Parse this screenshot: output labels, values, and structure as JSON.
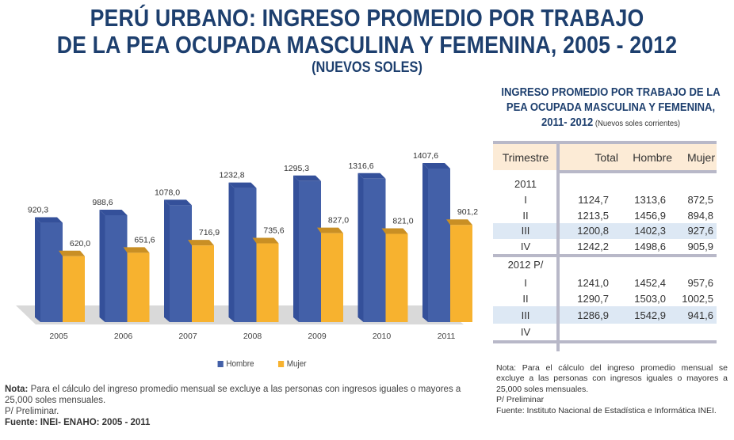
{
  "header": {
    "title_line1": "PERÚ URBANO: INGRESO PROMEDIO POR TRABAJO",
    "title_line2": "DE LA PEA OCUPADA MASCULINA Y FEMENINA, 2005 - 2012",
    "title_line3": "(NUEVOS SOLES)"
  },
  "colors": {
    "title": "#1d3f6e",
    "hombre": "#4360a8",
    "hombre_dark": "#34509a",
    "mujer": "#f7b22f",
    "mujer_dark": "#c98f24",
    "floor": "#d9d9d9",
    "table_header": "#fcebd6",
    "table_highlight": "#dde8f4"
  },
  "chart_data": {
    "type": "bar",
    "title": "",
    "xlabel": "",
    "ylabel": "",
    "ylim": [
      0,
      1500
    ],
    "grid": false,
    "legend_position": "bottom-center",
    "categories": [
      "2005",
      "2006",
      "2007",
      "2008",
      "2009",
      "2010",
      "2011"
    ],
    "series": [
      {
        "name": "Hombre",
        "values": [
          920.3,
          988.6,
          1078.0,
          1232.8,
          1295.3,
          1316.6,
          1407.6
        ],
        "labels": [
          "920,3",
          "988,6",
          "1078,0",
          "1232,8",
          "1295,3",
          "1316,6",
          "1407,6"
        ]
      },
      {
        "name": "Mujer",
        "values": [
          620.0,
          651.6,
          716.9,
          735.6,
          827.0,
          821.0,
          901.2
        ],
        "labels": [
          "620,0",
          "651,6",
          "716,9",
          "735,6",
          "827,0",
          "821,0",
          "901,2"
        ]
      }
    ]
  },
  "legend": {
    "hombre": "Hombre",
    "mujer": "Mujer"
  },
  "left_notes": {
    "nota_label": "Nota:",
    "nota_text": " Para el cálculo del ingreso promedio mensual se excluye a las personas con ingresos iguales o mayores a 25,000 soles mensuales.",
    "preliminar": "P/ Preliminar.",
    "fuente": "Fuente: INEI- ENAHO: 2005 - 2011"
  },
  "table": {
    "title_line1": "INGRESO PROMEDIO POR TRABAJO DE LA",
    "title_line2": "PEA OCUPADA MASCULINA Y FEMENINA,",
    "title_line3": "2011- 2012",
    "title_sub": " (Nuevos soles corrientes)",
    "headers": [
      "Trimestre",
      "Total",
      "Hombre",
      "Mujer"
    ],
    "groups": [
      {
        "year": "2011",
        "rows": [
          {
            "q": "I",
            "total": "1124,7",
            "hombre": "1313,6",
            "mujer": "872,5"
          },
          {
            "q": "II",
            "total": "1213,5",
            "hombre": "1456,9",
            "mujer": "894,8"
          },
          {
            "q": "III",
            "total": "1200,8",
            "hombre": "1402,3",
            "mujer": "927,6"
          },
          {
            "q": "IV",
            "total": "1242,2",
            "hombre": "1498,6",
            "mujer": "905,9"
          }
        ]
      },
      {
        "year": "2012 P/",
        "rows": [
          {
            "q": "I",
            "total": "1241,0",
            "hombre": "1452,4",
            "mujer": "957,6"
          },
          {
            "q": "II",
            "total": "1290,7",
            "hombre": "1503,0",
            "mujer": "1002,5"
          },
          {
            "q": "III",
            "total": "1286,9",
            "hombre": "1542,9",
            "mujer": "941,6"
          },
          {
            "q": "IV",
            "total": "",
            "hombre": "",
            "mujer": ""
          }
        ]
      }
    ]
  },
  "right_notes": {
    "nota": "Nota: Para el cálculo del ingreso promedio mensual se excluye a las personas con ingresos iguales o mayores a 25,000 soles mensuales.",
    "preliminar": "P/ Preliminar",
    "fuente": "Fuente: Instituto Nacional de Estadística e Informática INEI."
  }
}
